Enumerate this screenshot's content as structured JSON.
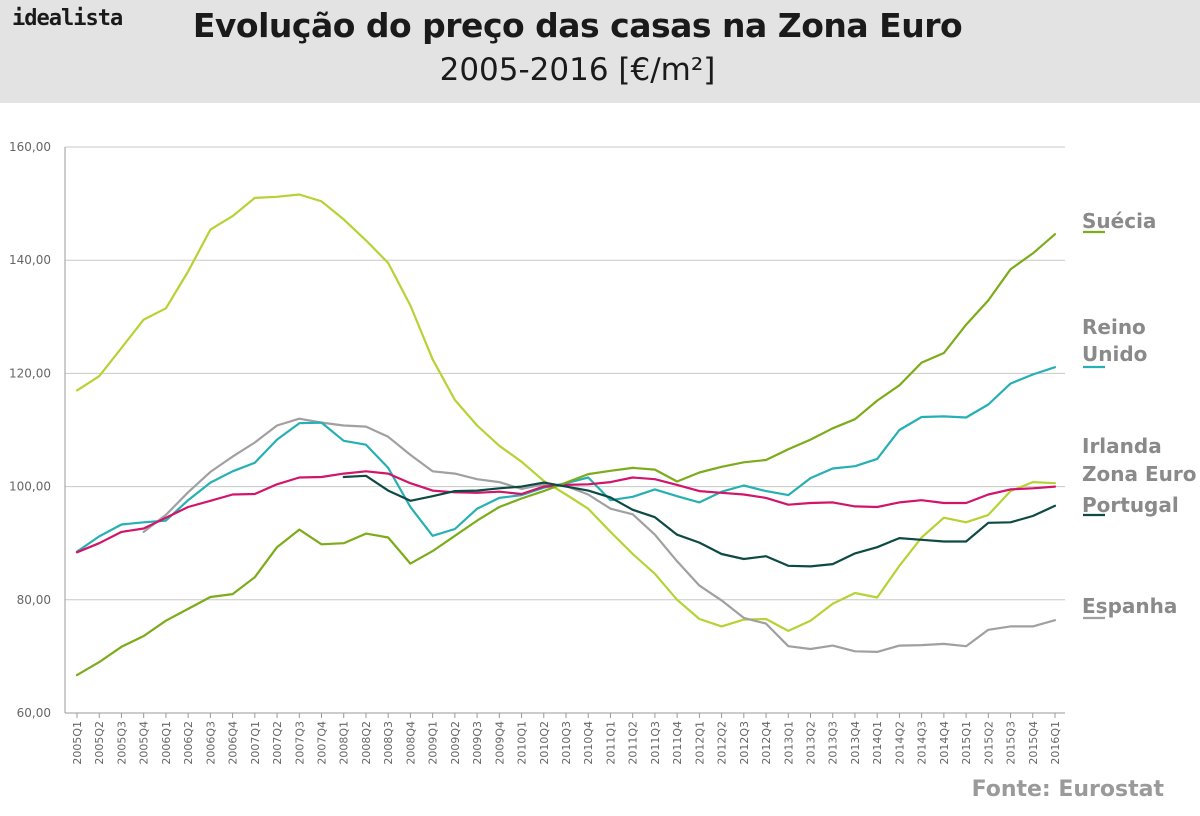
{
  "header": {
    "brand": "idealista",
    "title": "Evolução do preço das casas na Zona Euro",
    "subtitle": "2005-2016 [€/m²]"
  },
  "source": "Fonte: Eurostat",
  "chart_data": {
    "type": "line",
    "x": [
      "2005Q1",
      "2005Q2",
      "2005Q3",
      "2005Q4",
      "2006Q1",
      "2006Q2",
      "2006Q3",
      "2006Q4",
      "2007Q1",
      "2007Q2",
      "2007Q3",
      "2007Q4",
      "2008Q1",
      "2008Q2",
      "2008Q3",
      "2008Q4",
      "2009Q1",
      "2009Q2",
      "2009Q3",
      "2009Q4",
      "2010Q1",
      "2010Q2",
      "2010Q3",
      "2010Q4",
      "2011Q1",
      "2011Q2",
      "2011Q3",
      "2011Q4",
      "2012Q1",
      "2012Q2",
      "2012Q3",
      "2012Q4",
      "2013Q1",
      "2013Q2",
      "2013Q3",
      "2013Q4",
      "2014Q1",
      "2014Q2",
      "2014Q3",
      "2014Q4",
      "2015Q1",
      "2015Q2",
      "2015Q3",
      "2015Q4",
      "2016Q1"
    ],
    "ylim": [
      60,
      160
    ],
    "yticks": [
      60,
      80,
      100,
      120,
      140,
      160
    ],
    "ytick_labels": [
      "60,00",
      "80,00",
      "100,00",
      "120,00",
      "140,00",
      "160,00"
    ],
    "grid": true,
    "legend_position": "right",
    "series": [
      {
        "name": "Irlanda",
        "color": "#b5d334",
        "values": [
          117.0,
          119.5,
          124.5,
          129.5,
          131.5,
          138.0,
          145.4,
          147.8,
          151.0,
          151.2,
          151.6,
          150.4,
          147.2,
          143.5,
          139.5,
          132.0,
          122.5,
          115.3,
          110.8,
          107.2,
          104.4,
          101.0,
          98.6,
          96.1,
          92.0,
          88.1,
          84.6,
          80.0,
          76.6,
          75.3,
          76.5,
          76.6,
          74.5,
          76.3,
          79.3,
          81.2,
          80.4,
          86.0,
          91.0,
          94.5,
          93.7,
          95.0,
          99.2,
          100.8,
          100.6
        ]
      },
      {
        "name": "Espanha",
        "color": "#a0a0a0",
        "values": [
          null,
          null,
          null,
          92.0,
          95.0,
          99.0,
          102.6,
          105.3,
          107.8,
          110.8,
          112.0,
          111.3,
          110.8,
          110.6,
          108.8,
          105.6,
          102.7,
          102.3,
          101.3,
          100.8,
          99.6,
          100.4,
          100.1,
          98.6,
          96.1,
          95.1,
          91.5,
          86.8,
          82.5,
          79.9,
          76.8,
          75.8,
          71.8,
          71.3,
          71.9,
          70.9,
          70.8,
          71.9,
          72.0,
          72.2,
          71.8,
          74.7,
          75.3,
          75.3,
          76.4
        ]
      },
      {
        "name": "Reino Unido",
        "color": "#26b0b3",
        "values": [
          88.5,
          91.2,
          93.3,
          93.7,
          94.0,
          97.6,
          100.7,
          102.7,
          104.2,
          108.3,
          111.2,
          111.3,
          108.1,
          107.4,
          103.3,
          96.4,
          91.3,
          92.5,
          96.1,
          98.0,
          98.5,
          99.8,
          100.6,
          101.6,
          97.6,
          98.2,
          99.5,
          98.3,
          97.2,
          99.1,
          100.2,
          99.2,
          98.5,
          101.5,
          103.2,
          103.6,
          104.9,
          110.0,
          112.3,
          112.4,
          112.2,
          114.5,
          118.2,
          119.8,
          121.1
        ]
      },
      {
        "name": "Zona Euro",
        "color": "#d1156b",
        "values": [
          88.4,
          90.0,
          92.0,
          92.6,
          94.5,
          96.4,
          97.5,
          98.6,
          98.7,
          100.4,
          101.6,
          101.7,
          102.3,
          102.7,
          102.3,
          100.6,
          99.3,
          99.0,
          98.9,
          99.1,
          98.7,
          100.0,
          100.3,
          100.4,
          100.8,
          101.6,
          101.3,
          100.3,
          99.2,
          98.9,
          98.6,
          98.0,
          96.8,
          97.1,
          97.2,
          96.5,
          96.4,
          97.2,
          97.6,
          97.1,
          97.1,
          98.6,
          99.5,
          99.7,
          100.0
        ]
      },
      {
        "name": "Suécia",
        "color": "#7cac19",
        "values": [
          66.7,
          69.0,
          71.7,
          73.6,
          76.3,
          78.4,
          80.5,
          81.0,
          84.0,
          89.3,
          92.4,
          89.8,
          90.0,
          91.7,
          91.0,
          86.4,
          88.6,
          91.3,
          94.0,
          96.4,
          97.9,
          99.2,
          100.7,
          102.2,
          102.8,
          103.3,
          103.0,
          100.9,
          102.5,
          103.5,
          104.3,
          104.7,
          106.6,
          108.3,
          110.3,
          111.9,
          115.2,
          117.9,
          121.9,
          123.6,
          128.6,
          132.9,
          138.4,
          141.2,
          144.6
        ]
      },
      {
        "name": "Portugal",
        "color": "#0d4a44",
        "values": [
          null,
          null,
          null,
          null,
          null,
          null,
          null,
          null,
          null,
          null,
          null,
          null,
          101.7,
          101.9,
          99.3,
          97.5,
          98.3,
          99.2,
          99.3,
          99.7,
          100.0,
          100.7,
          100.0,
          99.3,
          98.1,
          95.9,
          94.6,
          91.5,
          90.1,
          88.1,
          87.2,
          87.7,
          86.0,
          85.9,
          86.3,
          88.2,
          89.3,
          90.9,
          90.6,
          90.3,
          90.3,
          93.6,
          93.7,
          94.8,
          96.6
        ]
      }
    ],
    "legend_labels": [
      {
        "key": "sweden",
        "lines": [
          "Suécia"
        ],
        "color": "#7cac19"
      },
      {
        "key": "uk",
        "lines": [
          "Reino",
          "Unido"
        ],
        "color": "#26b0b3"
      },
      {
        "key": "ireland",
        "lines": [
          "Irlanda"
        ],
        "color": null
      },
      {
        "key": "euro",
        "lines": [
          "Zona Euro"
        ],
        "color": null
      },
      {
        "key": "portugal",
        "lines": [
          "Portugal"
        ],
        "color": "#0d4a44"
      },
      {
        "key": "spain",
        "lines": [
          "Espanha"
        ],
        "color": "#a0a0a0"
      }
    ]
  }
}
